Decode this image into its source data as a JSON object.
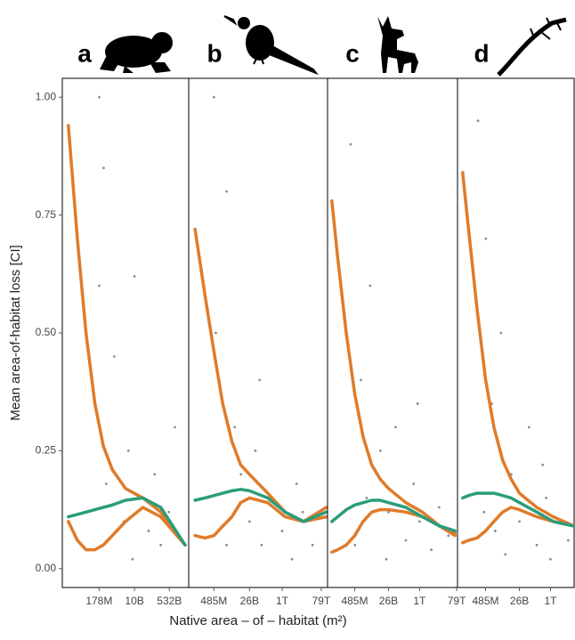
{
  "chart_data": [
    {
      "type": "scatter",
      "label": "a",
      "ylabel": "Mean area-of-habitat loss [CI]",
      "xlabel": "Native area – of – habitat (m²)",
      "log_x": true,
      "xlim": [
        2700000.0,
        4800000000000.0
      ],
      "ylim": [
        -0.04,
        1.04
      ],
      "xticks": [
        {
          "value": 178000000.0,
          "label": "178M"
        },
        {
          "value": 10000000000.0,
          "label": "10B"
        },
        {
          "value": 532000000000.0,
          "label": "532B"
        }
      ],
      "yticks": [
        {
          "value": 0,
          "label": "0.00"
        },
        {
          "value": 0.25,
          "label": "0.25"
        },
        {
          "value": 0.5,
          "label": "0.50"
        },
        {
          "value": 0.75,
          "label": "0.75"
        },
        {
          "value": 1,
          "label": "1.00"
        }
      ],
      "points": {
        "color": "#000000",
        "x": [
          180000000.0,
          180000000.0,
          180000000.0,
          300000000.0,
          1000000000.0,
          5000000000.0,
          10000000000.0,
          20000000000.0,
          50000000000.0,
          100000000000.0,
          200000000000.0,
          500000000000.0,
          1000000000000.0,
          8000000000.0,
          3000000000.0,
          400000000.0
        ],
        "y": [
          1.0,
          0.6,
          0.3,
          0.85,
          0.45,
          0.25,
          0.62,
          0.15,
          0.08,
          0.2,
          0.05,
          0.12,
          0.3,
          0.02,
          0.1,
          0.18
        ]
      },
      "series": [
        {
          "color": "#e07b2a",
          "x": [
            5400000.0,
            15000000.0,
            40000000.0,
            110000000.0,
            290000000.0,
            800000000.0,
            3600000000.0,
            26000000000.0,
            200000000000.0,
            3200000000000.0
          ],
          "values": [
            0.94,
            0.7,
            0.5,
            0.35,
            0.26,
            0.21,
            0.17,
            0.15,
            0.12,
            0.05
          ]
        },
        {
          "color": "#e07b2a",
          "x": [
            5400000.0,
            15000000.0,
            40000000.0,
            110000000.0,
            290000000.0,
            800000000.0,
            3600000000.0,
            26000000000.0,
            200000000000.0,
            3200000000000.0
          ],
          "values": [
            0.1,
            0.06,
            0.04,
            0.04,
            0.05,
            0.07,
            0.1,
            0.13,
            0.11,
            0.05
          ]
        },
        {
          "color": "#2a9d7a",
          "x": [
            5400000.0,
            15000000.0,
            40000000.0,
            110000000.0,
            290000000.0,
            800000000.0,
            3600000000.0,
            26000000000.0,
            200000000000.0,
            3200000000000.0
          ],
          "values": [
            0.11,
            0.115,
            0.12,
            0.125,
            0.13,
            0.135,
            0.145,
            0.15,
            0.13,
            0.05
          ]
        }
      ]
    },
    {
      "type": "scatter",
      "label": "b",
      "log_x": true,
      "xlim": [
        29000000.0,
        160000000000000.0
      ],
      "ylim": [
        -0.04,
        1.04
      ],
      "xticks": [
        {
          "value": 485000000.0,
          "label": "485M"
        },
        {
          "value": 26000000000.0,
          "label": "26B"
        },
        {
          "value": 1000000000000.0,
          "label": "1T"
        },
        {
          "value": 79000000000000.0,
          "label": "79T"
        }
      ],
      "points": {
        "color": "#000000",
        "x": [
          490000000.0,
          600000000.0,
          2000000000.0,
          5000000000.0,
          10000000000.0,
          26000000000.0,
          50000000000.0,
          100000000000.0,
          300000000000.0,
          1000000000000.0,
          3000000000000.0,
          10000000000000.0,
          30000000000000.0,
          2000000000.0,
          80000000000.0,
          5000000000000.0
        ],
        "y": [
          1.0,
          0.5,
          0.8,
          0.3,
          0.2,
          0.1,
          0.25,
          0.05,
          0.15,
          0.08,
          0.02,
          0.12,
          0.05,
          0.05,
          0.4,
          0.18
        ]
      },
      "series": [
        {
          "color": "#e07b2a",
          "x": [
            59000000.0,
            180000000.0,
            490000000.0,
            1300000000.0,
            3600000000.0,
            9700000000.0,
            26000000000.0,
            200000000000.0,
            1400000000000.0,
            11000000000000.0,
            140000000000000.0
          ],
          "values": [
            0.72,
            0.58,
            0.46,
            0.35,
            0.27,
            0.22,
            0.2,
            0.16,
            0.12,
            0.1,
            0.13
          ]
        },
        {
          "color": "#e07b2a",
          "x": [
            59000000.0,
            180000000.0,
            490000000.0,
            1300000000.0,
            3600000000.0,
            9700000000.0,
            26000000000.0,
            200000000000.0,
            1400000000000.0,
            11000000000000.0,
            140000000000000.0
          ],
          "values": [
            0.07,
            0.065,
            0.07,
            0.09,
            0.11,
            0.14,
            0.15,
            0.14,
            0.11,
            0.1,
            0.11
          ]
        },
        {
          "color": "#2a9d7a",
          "x": [
            59000000.0,
            180000000.0,
            490000000.0,
            1300000000.0,
            3600000000.0,
            9700000000.0,
            26000000000.0,
            200000000000.0,
            1400000000000.0,
            11000000000000.0,
            140000000000000.0
          ],
          "values": [
            0.145,
            0.15,
            0.155,
            0.16,
            0.165,
            0.168,
            0.165,
            0.15,
            0.12,
            0.1,
            0.12
          ]
        }
      ]
    },
    {
      "type": "scatter",
      "label": "c",
      "log_x": true,
      "xlim": [
        20000000.0,
        87000000000000.0
      ],
      "ylim": [
        -0.04,
        1.04
      ],
      "xticks": [
        {
          "value": 485000000.0,
          "label": "485M"
        },
        {
          "value": 26000000000.0,
          "label": "26B"
        },
        {
          "value": 1000000000000.0,
          "label": "1T"
        },
        {
          "value": 79000000000000.0,
          "label": "79T"
        }
      ],
      "points": {
        "color": "#000000",
        "x": [
          300000000.0,
          1000000000.0,
          3000000000.0,
          10000000000.0,
          26000000000.0,
          60000000000.0,
          200000000000.0,
          500000000000.0,
          1000000000000.0,
          4000000000000.0,
          10000000000000.0,
          30000000000000.0,
          500000000.0,
          20000000000.0,
          800000000000.0,
          2000000000.0
        ],
        "y": [
          0.9,
          0.4,
          0.6,
          0.25,
          0.12,
          0.3,
          0.06,
          0.18,
          0.1,
          0.04,
          0.13,
          0.07,
          0.05,
          0.02,
          0.35,
          0.15
        ]
      },
      "series": [
        {
          "color": "#e07b2a",
          "x": [
            33000000.0,
            66000000.0,
            180000000.0,
            490000000.0,
            1300000000.0,
            3600000000.0,
            9700000000.0,
            26000000000.0,
            200000000000.0,
            1400000000000.0,
            11000000000000.0,
            65000000000000.0
          ],
          "values": [
            0.78,
            0.66,
            0.5,
            0.37,
            0.28,
            0.22,
            0.19,
            0.17,
            0.14,
            0.12,
            0.09,
            0.07
          ]
        },
        {
          "color": "#e07b2a",
          "x": [
            33000000.0,
            66000000.0,
            180000000.0,
            490000000.0,
            1300000000.0,
            3600000000.0,
            9700000000.0,
            26000000000.0,
            200000000000.0,
            1400000000000.0,
            11000000000000.0,
            65000000000000.0
          ],
          "values": [
            0.035,
            0.04,
            0.05,
            0.07,
            0.1,
            0.12,
            0.125,
            0.125,
            0.12,
            0.11,
            0.09,
            0.075
          ]
        },
        {
          "color": "#2a9d7a",
          "x": [
            33000000.0,
            66000000.0,
            180000000.0,
            490000000.0,
            1300000000.0,
            3600000000.0,
            9700000000.0,
            26000000000.0,
            200000000000.0,
            1400000000000.0,
            11000000000000.0,
            65000000000000.0
          ],
          "values": [
            0.1,
            0.11,
            0.125,
            0.135,
            0.14,
            0.145,
            0.145,
            0.14,
            0.13,
            0.11,
            0.09,
            0.08
          ]
        }
      ]
    },
    {
      "type": "scatter",
      "label": "d",
      "log_x": true,
      "xlim": [
        18000000.0,
        16000000000000.0
      ],
      "ylim": [
        -0.04,
        1.04
      ],
      "xticks": [
        {
          "value": 485000000.0,
          "label": "485M"
        },
        {
          "value": 26000000000.0,
          "label": "26B"
        },
        {
          "value": 1000000000000.0,
          "label": "1T"
        }
      ],
      "points": {
        "color": "#000000",
        "x": [
          200000000.0,
          500000000.0,
          1000000000.0,
          3000000000.0,
          10000000000.0,
          26000000000.0,
          80000000000.0,
          200000000000.0,
          600000000000.0,
          1000000000000.0,
          3000000000000.0,
          8000000000000.0,
          400000000.0,
          5000000000.0,
          400000000000.0,
          1500000000.0
        ],
        "y": [
          0.95,
          0.7,
          0.35,
          0.5,
          0.2,
          0.1,
          0.3,
          0.05,
          0.15,
          0.02,
          0.1,
          0.06,
          0.12,
          0.03,
          0.22,
          0.08
        ]
      },
      "series": [
        {
          "color": "#e07b2a",
          "x": [
            33000000.0,
            66000000.0,
            180000000.0,
            490000000.0,
            1300000000.0,
            3600000000.0,
            9700000000.0,
            26000000000.0,
            200000000000.0,
            1400000000000.0,
            16000000000000.0
          ],
          "values": [
            0.84,
            0.72,
            0.55,
            0.4,
            0.3,
            0.23,
            0.19,
            0.16,
            0.13,
            0.11,
            0.09
          ]
        },
        {
          "color": "#e07b2a",
          "x": [
            33000000.0,
            66000000.0,
            180000000.0,
            490000000.0,
            1300000000.0,
            3600000000.0,
            9700000000.0,
            26000000000.0,
            200000000000.0,
            1400000000000.0,
            16000000000000.0
          ],
          "values": [
            0.055,
            0.06,
            0.065,
            0.08,
            0.1,
            0.12,
            0.13,
            0.125,
            0.11,
            0.1,
            0.09
          ]
        },
        {
          "color": "#2a9d7a",
          "x": [
            33000000.0,
            66000000.0,
            180000000.0,
            490000000.0,
            1300000000.0,
            3600000000.0,
            9700000000.0,
            26000000000.0,
            200000000000.0,
            1400000000000.0,
            16000000000000.0
          ],
          "values": [
            0.15,
            0.155,
            0.16,
            0.16,
            0.16,
            0.155,
            0.15,
            0.14,
            0.12,
            0.1,
            0.09
          ]
        }
      ]
    }
  ]
}
